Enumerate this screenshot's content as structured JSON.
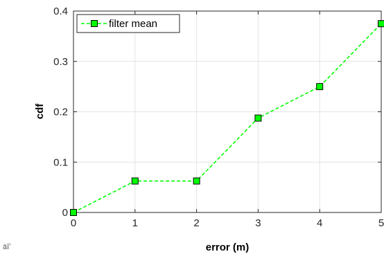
{
  "chart_data": {
    "type": "line",
    "x": [
      0,
      1,
      2,
      3,
      4,
      5
    ],
    "series": [
      {
        "name": "filter mean",
        "values": [
          0,
          0.0625,
          0.0625,
          0.1875,
          0.25,
          0.375
        ],
        "color": "#00ff00",
        "marker": "square",
        "line_style": "dashed"
      }
    ],
    "xlabel": "error (m)",
    "ylabel": "cdf",
    "xlim": [
      0,
      5
    ],
    "ylim": [
      0,
      0.4
    ],
    "xticks": [
      "0",
      "1",
      "2",
      "3",
      "4",
      "5"
    ],
    "yticks": [
      "0",
      "0.1",
      "0.2",
      "0.3",
      "0.4"
    ],
    "grid": true,
    "legend_position": "top-left"
  },
  "corner_mark": "äîʼ"
}
